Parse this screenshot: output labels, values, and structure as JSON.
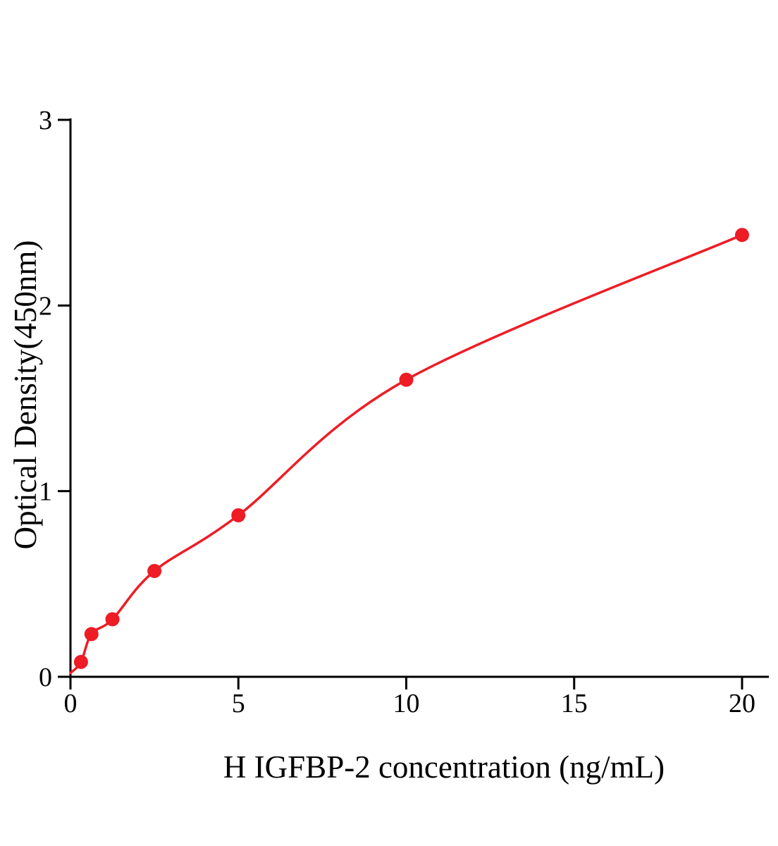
{
  "chart_data": {
    "type": "scatter",
    "title": "",
    "xlabel": "H IGFBP-2 concentration (ng/mL)",
    "ylabel": "Optical Density(450nm)",
    "x": [
      0.313,
      0.625,
      1.25,
      2.5,
      5,
      10,
      20
    ],
    "y": [
      0.08,
      0.23,
      0.31,
      0.57,
      0.87,
      1.6,
      2.38
    ],
    "curve_start": {
      "x": 0,
      "y": 0.02
    },
    "xlim": [
      0,
      20.8
    ],
    "ylim": [
      0,
      3
    ],
    "xticks": [
      0,
      5,
      10,
      15,
      20
    ],
    "yticks": [
      0,
      1,
      2,
      3
    ],
    "legend": "none",
    "grid": false,
    "point_color": "#ee1c25",
    "line_color": "#ee1c25",
    "axis_color": "#000000",
    "background": "#ffffff"
  }
}
